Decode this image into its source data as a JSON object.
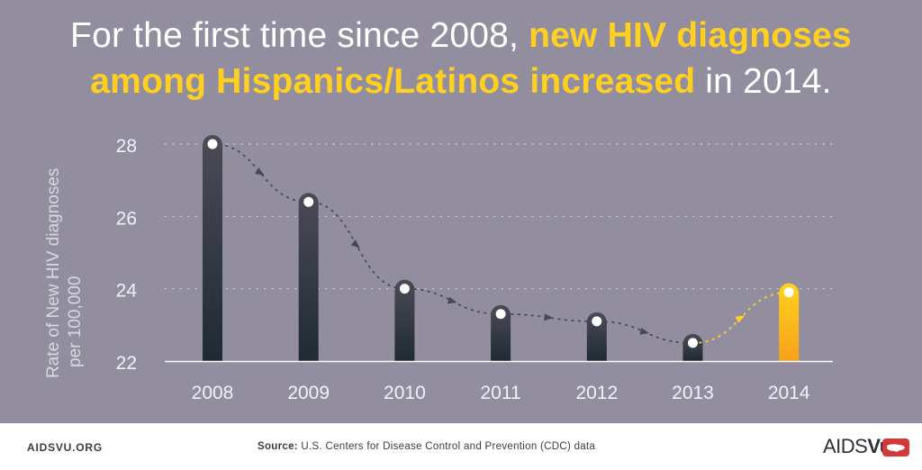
{
  "header": {
    "title_part1": "For the first time since 2008, ",
    "title_highlight1": "new HIV diagnoses",
    "title_highlight2": "among Hispanics/Latinos increased",
    "title_part2": " in 2014."
  },
  "chart_data": {
    "type": "bar",
    "title": "For the first time since 2008, new HIV diagnoses among Hispanics/Latinos increased in 2014.",
    "xlabel": "",
    "ylabel": "Rate of New HIV diagnoses per 100,000",
    "ylabel_line1": "Rate of New HIV diagnoses",
    "ylabel_line2": "per 100,000",
    "categories": [
      "2008",
      "2009",
      "2010",
      "2011",
      "2012",
      "2013",
      "2014"
    ],
    "values": [
      28.0,
      26.4,
      24.0,
      23.3,
      23.1,
      22.5,
      23.9
    ],
    "ylim": [
      22,
      28
    ],
    "yticks": [
      "22",
      "24",
      "26",
      "28"
    ],
    "ytick_values": [
      22,
      24,
      26,
      28
    ],
    "grid": true,
    "highlight_category": "2014",
    "colors": {
      "bar": "#2f3039",
      "highlight_top": "#ffd21c",
      "highlight_bottom": "#f7a21b",
      "trend": "#4a4754",
      "trend_highlight": "#ffd01f",
      "grid": "#c9c6d2"
    }
  },
  "footer": {
    "site": "AIDSVU.ORG",
    "source_label": "Source:",
    "source_text": " U.S. Centers for Disease Control and Prevention (CDC) data",
    "brand_main": "AIDS",
    "brand_vu": "Vu",
    "brand_color": "#d23a3a"
  }
}
